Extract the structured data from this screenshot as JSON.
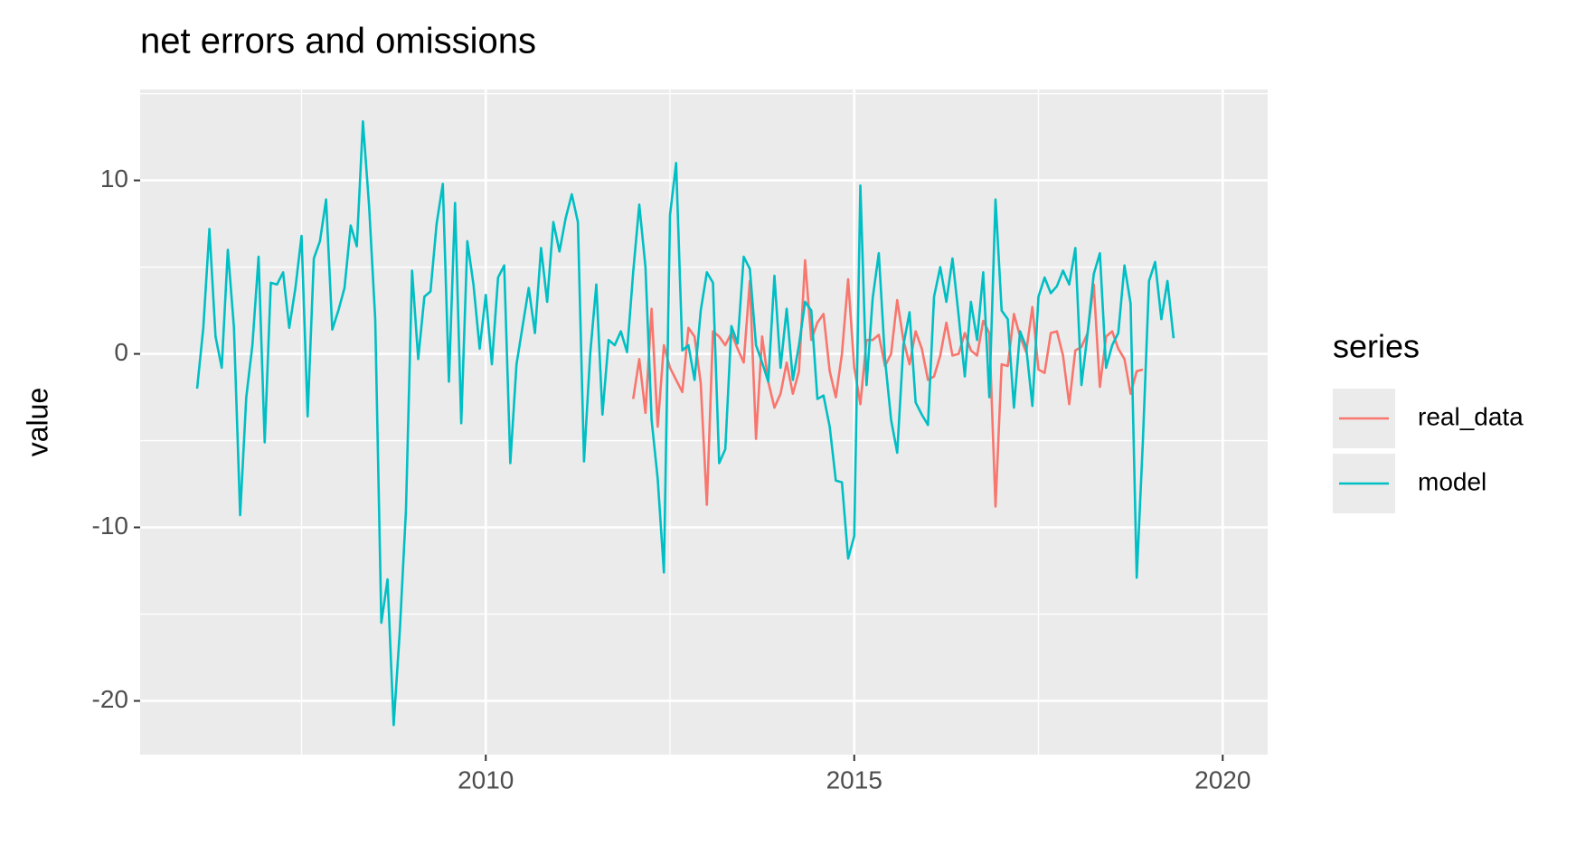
{
  "chart_data": {
    "type": "line",
    "title": "net errors and omissions",
    "y_label": "value",
    "legend_title": "series",
    "legend_position": "right",
    "grid": true,
    "panel_color": "#ebebeb",
    "xlim": [
      2005.31,
      2020.61
    ],
    "xticks": [
      2010,
      2015,
      2020
    ],
    "ylim": [
      -23.1,
      15.24
    ],
    "yticks": [
      -20,
      -10,
      0,
      10
    ],
    "x": [
      2006.083,
      2006.167,
      2006.25,
      2006.333,
      2006.417,
      2006.5,
      2006.583,
      2006.667,
      2006.75,
      2006.833,
      2006.917,
      2007,
      2007.083,
      2007.167,
      2007.25,
      2007.333,
      2007.417,
      2007.5,
      2007.583,
      2007.667,
      2007.75,
      2007.833,
      2007.917,
      2008,
      2008.083,
      2008.167,
      2008.25,
      2008.333,
      2008.417,
      2008.5,
      2008.583,
      2008.667,
      2008.75,
      2008.833,
      2008.917,
      2009,
      2009.083,
      2009.167,
      2009.25,
      2009.333,
      2009.417,
      2009.5,
      2009.583,
      2009.667,
      2009.75,
      2009.833,
      2009.917,
      2010,
      2010.083,
      2010.167,
      2010.25,
      2010.333,
      2010.417,
      2010.5,
      2010.583,
      2010.667,
      2010.75,
      2010.833,
      2010.917,
      2011,
      2011.083,
      2011.167,
      2011.25,
      2011.333,
      2011.417,
      2011.5,
      2011.583,
      2011.667,
      2011.75,
      2011.833,
      2011.917,
      2012,
      2012.083,
      2012.167,
      2012.25,
      2012.333,
      2012.417,
      2012.5,
      2012.583,
      2012.667,
      2012.75,
      2012.833,
      2012.917,
      2013,
      2013.083,
      2013.167,
      2013.25,
      2013.333,
      2013.417,
      2013.5,
      2013.583,
      2013.667,
      2013.75,
      2013.833,
      2013.917,
      2014,
      2014.083,
      2014.167,
      2014.25,
      2014.333,
      2014.417,
      2014.5,
      2014.583,
      2014.667,
      2014.75,
      2014.833,
      2014.917,
      2015,
      2015.083,
      2015.167,
      2015.25,
      2015.333,
      2015.417,
      2015.5,
      2015.583,
      2015.667,
      2015.75,
      2015.833,
      2015.917,
      2016,
      2016.083,
      2016.167,
      2016.25,
      2016.333,
      2016.417,
      2016.5,
      2016.583,
      2016.667,
      2016.75,
      2016.833,
      2016.917,
      2017,
      2017.083,
      2017.167,
      2017.25,
      2017.333,
      2017.417,
      2017.5,
      2017.583,
      2017.667,
      2017.75,
      2017.833,
      2017.917,
      2018,
      2018.083,
      2018.167,
      2018.25,
      2018.333,
      2018.417,
      2018.5,
      2018.583,
      2018.667,
      2018.75,
      2018.833,
      2018.917,
      2019,
      2019.083,
      2019.167,
      2019.25,
      2019.333
    ],
    "series": [
      {
        "name": "real_data",
        "color": "#F8766D",
        "values": [
          null,
          null,
          null,
          null,
          null,
          null,
          null,
          null,
          null,
          null,
          null,
          null,
          null,
          null,
          null,
          null,
          null,
          null,
          null,
          null,
          null,
          null,
          null,
          null,
          null,
          null,
          null,
          null,
          null,
          null,
          null,
          null,
          null,
          null,
          null,
          null,
          null,
          null,
          null,
          null,
          null,
          null,
          null,
          null,
          null,
          null,
          null,
          null,
          null,
          null,
          null,
          null,
          null,
          null,
          null,
          null,
          null,
          null,
          null,
          null,
          null,
          null,
          null,
          null,
          null,
          null,
          null,
          null,
          null,
          null,
          null,
          -2.6,
          -0.3,
          -3.4,
          2.6,
          -4.2,
          0.5,
          -0.8,
          -1.5,
          -2.2,
          1.5,
          1,
          -1.7,
          -8.7,
          1.3,
          1,
          0.5,
          1.2,
          0.3,
          -0.5,
          4.2,
          -4.9,
          1,
          -1.6,
          -3.1,
          -2.3,
          -0.5,
          -2.3,
          -1,
          5.4,
          0.8,
          1.8,
          2.3,
          -1,
          -2.5,
          0,
          4.3,
          -0.8,
          -2.9,
          0.8,
          0.8,
          1.1,
          -0.7,
          0,
          3.1,
          0.8,
          -0.6,
          1.3,
          0.3,
          -1.5,
          -1.3,
          -0.1,
          1.8,
          -0.1,
          0,
          1.2,
          0.2,
          -0.1,
          1.9,
          1.2,
          -8.8,
          -0.6,
          -0.7,
          2.3,
          1,
          0.1,
          2.7,
          -0.9,
          -1.1,
          1.2,
          1.3,
          -0.1,
          -2.9,
          0.2,
          0.4,
          1.2,
          4,
          -1.9,
          1,
          1.3,
          0.3,
          -0.3,
          -2.3,
          -1,
          -0.9,
          null,
          null,
          null,
          null,
          null
        ]
      },
      {
        "name": "model",
        "color": "#00BFC4",
        "values": [
          -2,
          1.5,
          7.2,
          1,
          -0.8,
          6,
          1.5,
          -9.3,
          -2.5,
          0.5,
          5.6,
          -5.1,
          4.1,
          4,
          4.7,
          1.5,
          3.8,
          6.8,
          -3.6,
          5.5,
          6.5,
          8.9,
          1.4,
          2.5,
          3.8,
          7.4,
          6.2,
          13.4,
          8.5,
          2,
          -15.5,
          -13,
          -21.4,
          -16,
          -9,
          4.8,
          -0.3,
          3.3,
          3.6,
          7.5,
          9.8,
          -1.6,
          8.7,
          -4,
          6.5,
          4,
          0.3,
          3.4,
          -0.6,
          4.4,
          5.1,
          -6.3,
          -0.6,
          1.6,
          3.8,
          1.2,
          6.1,
          3,
          7.6,
          5.9,
          7.8,
          9.2,
          7.6,
          -6.2,
          0,
          4,
          -3.5,
          0.8,
          0.5,
          1.3,
          0.1,
          4.7,
          8.6,
          5,
          -3.8,
          -7.2,
          -12.6,
          8,
          11,
          0.2,
          0.5,
          -1.5,
          2.5,
          4.7,
          4.1,
          -6.3,
          -5.5,
          1.6,
          0.6,
          5.6,
          4.9,
          0.5,
          -0.5,
          -1.6,
          4.5,
          -0.8,
          2.6,
          -1.5,
          0.5,
          3,
          2.5,
          -2.6,
          -2.4,
          -4.2,
          -7.3,
          -7.4,
          -11.8,
          -10.5,
          9.7,
          -1.8,
          3.2,
          5.8,
          -0.3,
          -3.8,
          -5.7,
          0.5,
          2.4,
          -2.8,
          -3.5,
          -4.1,
          3.3,
          5,
          3,
          5.5,
          2.2,
          -1.3,
          3,
          0.8,
          4.7,
          -2.5,
          8.9,
          2.5,
          2,
          -3.1,
          1.3,
          0.4,
          -3,
          3.3,
          4.4,
          3.5,
          3.9,
          4.8,
          4,
          6.1,
          -1.8,
          1.2,
          4.6,
          5.8,
          -0.8,
          0.5,
          1.2,
          5.1,
          2.9,
          -12.9,
          -5,
          4.2,
          5.3,
          2,
          4.2,
          0.9
        ]
      }
    ]
  }
}
